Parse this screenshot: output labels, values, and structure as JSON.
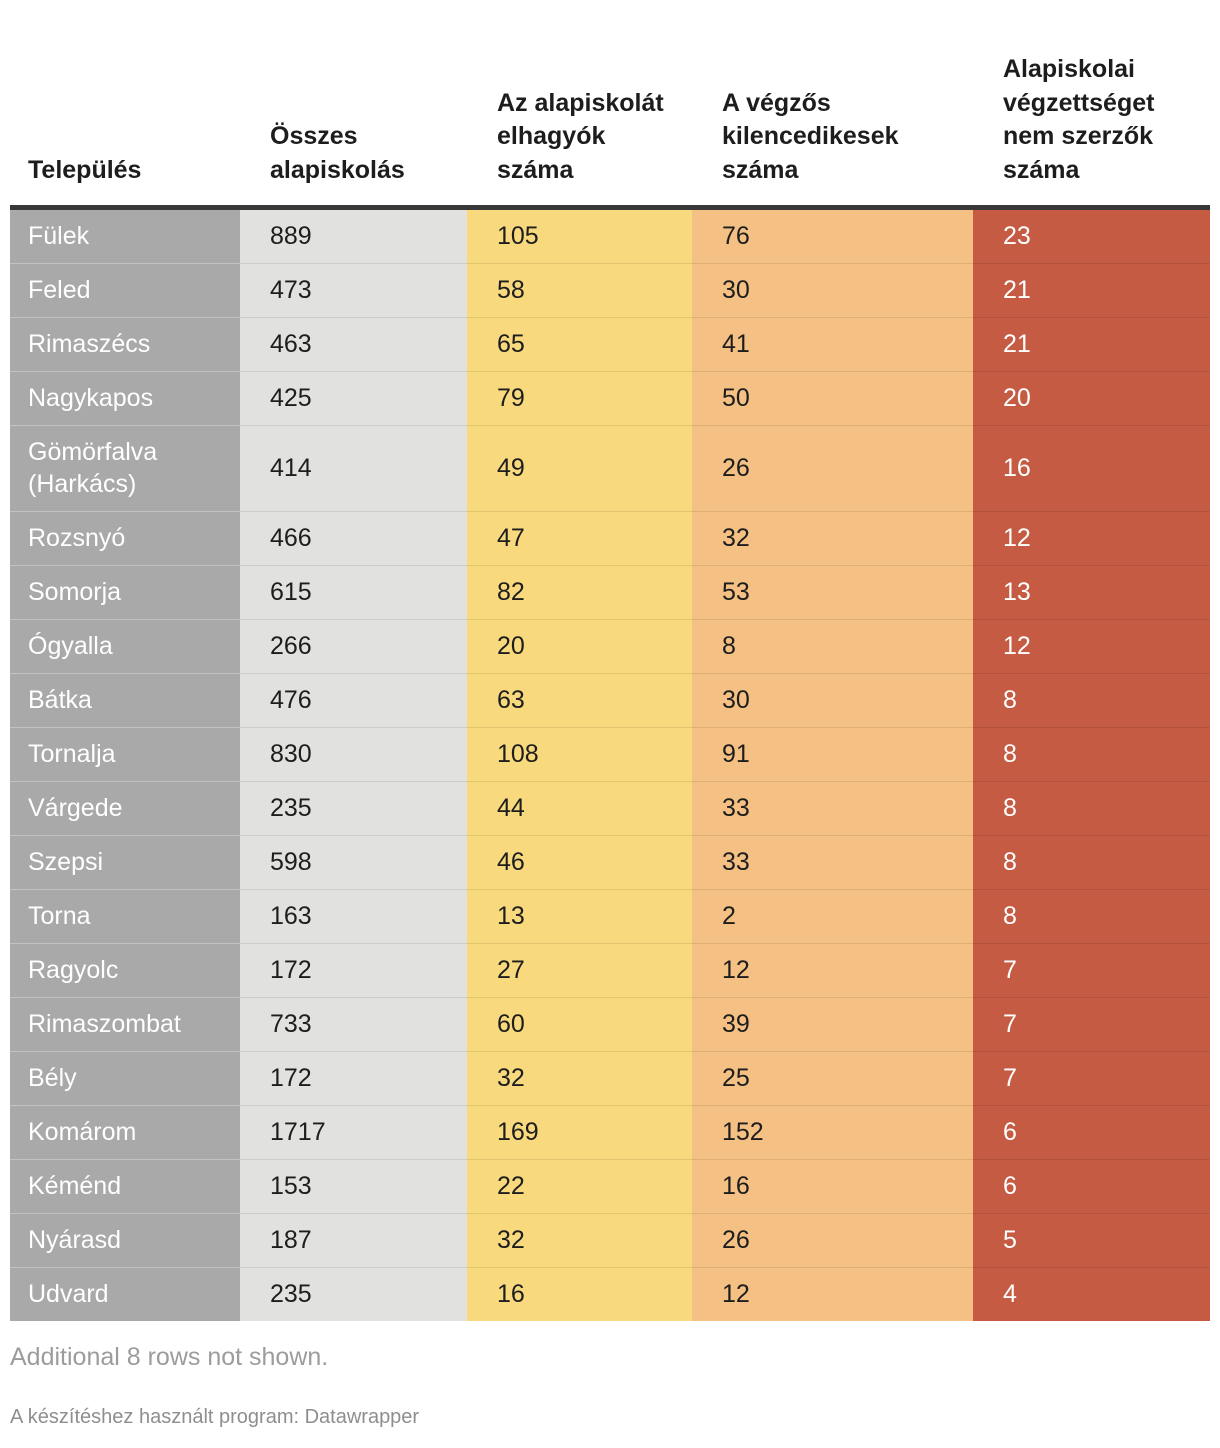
{
  "chart_data": {
    "type": "table",
    "columns": [
      "Település",
      "Összes alapiskolás",
      "Az alapiskolát elhagyók száma",
      "A végzős kilencedikesek száma",
      "Alapiskolai végzettséget nem szerzők száma"
    ],
    "rows": [
      [
        "Fülek",
        889,
        105,
        76,
        23
      ],
      [
        "Feled",
        473,
        58,
        30,
        21
      ],
      [
        "Rimaszécs",
        463,
        65,
        41,
        21
      ],
      [
        "Nagykapos",
        425,
        79,
        50,
        20
      ],
      [
        "Gömörfalva (Harkács)",
        414,
        49,
        26,
        16
      ],
      [
        "Rozsnyó",
        466,
        47,
        32,
        12
      ],
      [
        "Somorja",
        615,
        82,
        53,
        13
      ],
      [
        "Ógyalla",
        266,
        20,
        8,
        12
      ],
      [
        "Bátka",
        476,
        63,
        30,
        8
      ],
      [
        "Tornalja",
        830,
        108,
        91,
        8
      ],
      [
        "Várgede",
        235,
        44,
        33,
        8
      ],
      [
        "Szepsi",
        598,
        46,
        33,
        8
      ],
      [
        "Torna",
        163,
        13,
        2,
        8
      ],
      [
        "Ragyolc",
        172,
        27,
        12,
        7
      ],
      [
        "Rimaszombat",
        733,
        60,
        39,
        7
      ],
      [
        "Bély",
        172,
        32,
        25,
        7
      ],
      [
        "Komárom",
        1717,
        169,
        152,
        6
      ],
      [
        "Kéménd",
        153,
        22,
        16,
        6
      ],
      [
        "Nyárasd",
        187,
        32,
        26,
        5
      ],
      [
        "Udvard",
        235,
        16,
        12,
        4
      ]
    ],
    "column_colors": [
      "#a9a9a9",
      "#e1e1df",
      "#f8d97d",
      "#f4c083",
      "#c65b44"
    ],
    "header_rule_color": "#383838",
    "notes": "Additional 8 rows not shown.",
    "credit": "A készítéshez használt program: Datawrapper",
    "legend_position": "none",
    "grid": false
  }
}
